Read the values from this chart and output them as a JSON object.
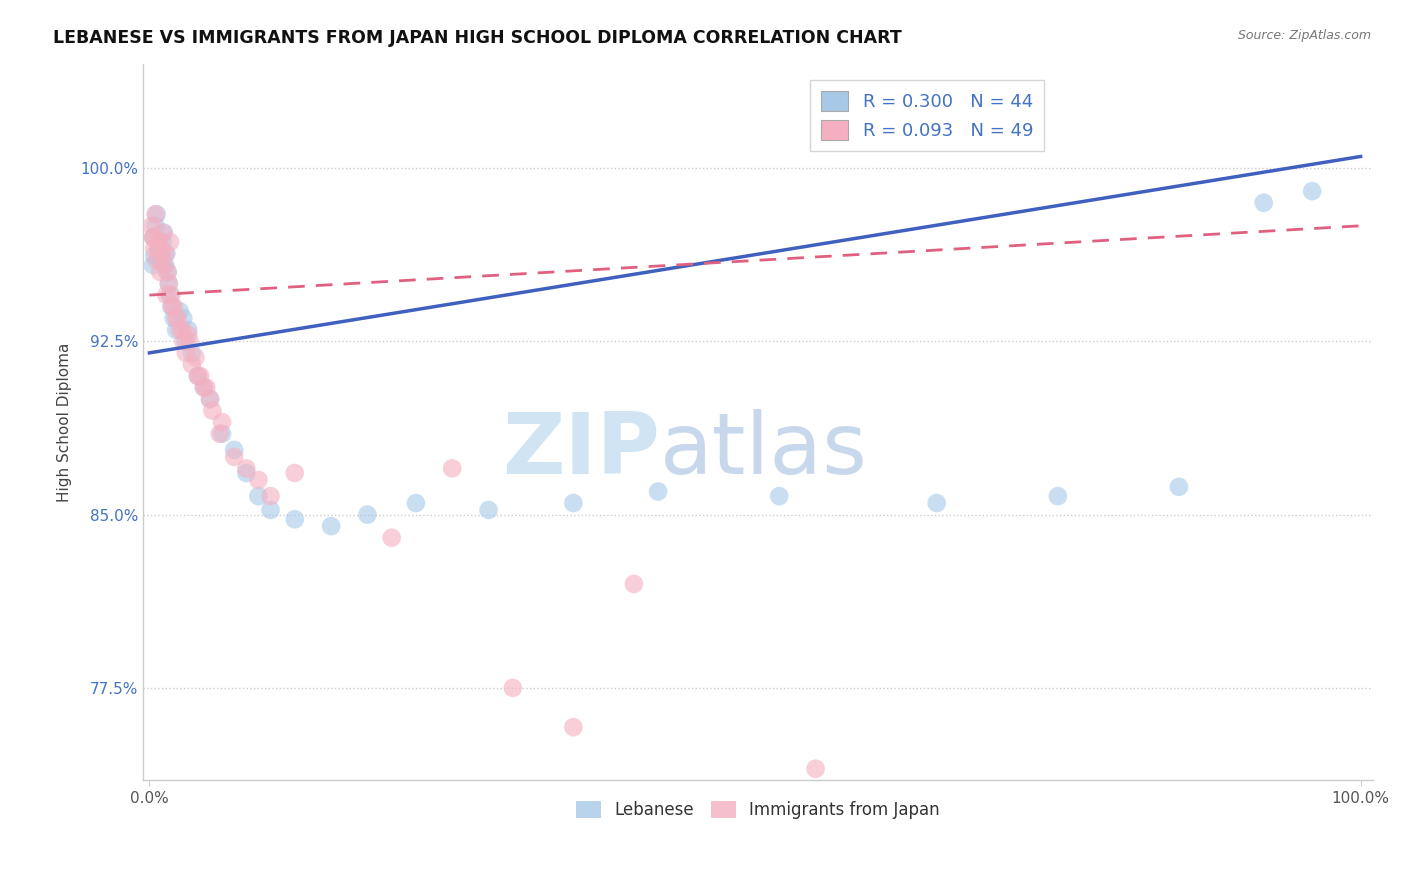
{
  "title": "LEBANESE VS IMMIGRANTS FROM JAPAN HIGH SCHOOL DIPLOMA CORRELATION CHART",
  "source": "Source: ZipAtlas.com",
  "ylabel": "High School Diploma",
  "y_min": 0.735,
  "y_max": 1.045,
  "x_min": -0.005,
  "x_max": 1.01,
  "ytick_values": [
    0.775,
    0.85,
    0.925,
    1.0
  ],
  "ytick_labels": [
    "77.5%",
    "85.0%",
    "92.5%",
    "100.0%"
  ],
  "xtick_values": [
    0.0,
    1.0
  ],
  "xtick_labels": [
    "0.0%",
    "100.0%"
  ],
  "legend_r_blue": "R = 0.300",
  "legend_n_blue": "N = 44",
  "legend_r_pink": "R = 0.093",
  "legend_n_pink": "N = 49",
  "color_blue": "#a8c8e8",
  "color_pink": "#f4b0c0",
  "color_blue_line": "#4060c0",
  "color_pink_line": "#e06080",
  "watermark_zip": "ZIP",
  "watermark_atlas": "atlas",
  "watermark_color": "#d0e4f4",
  "label_blue": "Lebanese",
  "label_pink": "Immigrants from Japan",
  "blue_x": [
    0.003,
    0.005,
    0.006,
    0.008,
    0.009,
    0.01,
    0.011,
    0.012,
    0.013,
    0.014,
    0.015,
    0.016,
    0.017,
    0.018,
    0.02,
    0.022,
    0.025,
    0.028,
    0.03,
    0.032,
    0.035,
    0.04,
    0.045,
    0.05,
    0.06,
    0.07,
    0.08,
    0.09,
    0.1,
    0.12,
    0.15,
    0.18,
    0.22,
    0.28,
    0.35,
    0.42,
    0.52,
    0.65,
    0.75,
    0.85,
    0.92,
    0.003,
    0.004,
    0.96
  ],
  "blue_y": [
    0.97,
    0.975,
    0.98,
    0.965,
    0.96,
    0.962,
    0.968,
    0.972,
    0.958,
    0.963,
    0.955,
    0.95,
    0.945,
    0.94,
    0.935,
    0.93,
    0.938,
    0.935,
    0.925,
    0.93,
    0.92,
    0.91,
    0.905,
    0.9,
    0.885,
    0.878,
    0.868,
    0.858,
    0.852,
    0.848,
    0.845,
    0.85,
    0.855,
    0.852,
    0.855,
    0.86,
    0.858,
    0.855,
    0.858,
    0.862,
    0.985,
    0.958,
    0.962,
    0.99
  ],
  "pink_x": [
    0.002,
    0.004,
    0.005,
    0.007,
    0.008,
    0.01,
    0.011,
    0.012,
    0.013,
    0.015,
    0.016,
    0.017,
    0.018,
    0.02,
    0.022,
    0.025,
    0.028,
    0.03,
    0.032,
    0.035,
    0.04,
    0.045,
    0.05,
    0.06,
    0.07,
    0.08,
    0.09,
    0.1,
    0.12,
    0.003,
    0.004,
    0.006,
    0.009,
    0.014,
    0.019,
    0.023,
    0.027,
    0.033,
    0.038,
    0.042,
    0.047,
    0.052,
    0.058,
    0.25,
    0.35,
    0.2,
    0.3,
    0.4,
    0.55
  ],
  "pink_y": [
    0.975,
    0.97,
    0.98,
    0.965,
    0.968,
    0.962,
    0.972,
    0.958,
    0.963,
    0.955,
    0.95,
    0.968,
    0.945,
    0.94,
    0.935,
    0.93,
    0.925,
    0.92,
    0.928,
    0.915,
    0.91,
    0.905,
    0.9,
    0.89,
    0.875,
    0.87,
    0.865,
    0.858,
    0.868,
    0.97,
    0.965,
    0.96,
    0.955,
    0.945,
    0.94,
    0.935,
    0.93,
    0.925,
    0.918,
    0.91,
    0.905,
    0.895,
    0.885,
    0.87,
    0.758,
    0.84,
    0.775,
    0.82,
    0.74
  ],
  "blue_line_x0": 0.0,
  "blue_line_x1": 1.0,
  "blue_line_y0": 0.92,
  "blue_line_y1": 1.005,
  "pink_line_x0": 0.0,
  "pink_line_x1": 1.0,
  "pink_line_y0": 0.945,
  "pink_line_y1": 0.975
}
